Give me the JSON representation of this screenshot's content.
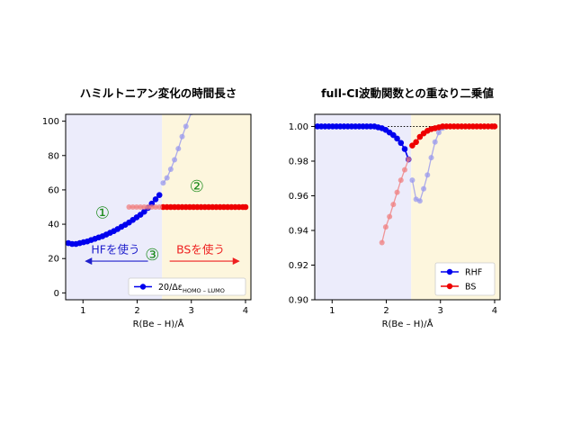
{
  "chart_data": [
    {
      "type": "line",
      "title": "ハミルトニアン変化の時間長さ",
      "xlabel": "R(Be – H)/Å",
      "ylabel": "",
      "xlim": [
        0.68,
        4.1
      ],
      "ylim": [
        -4,
        104
      ],
      "xticks": [
        1,
        2,
        3,
        4
      ],
      "yticks": [
        0,
        20,
        40,
        60,
        80,
        100
      ],
      "regions": [
        {
          "x0": 0.68,
          "x1": 2.46,
          "color": "#ececfb"
        },
        {
          "x0": 2.46,
          "x1": 4.1,
          "color": "#fdf6dd"
        }
      ],
      "series": [
        {
          "name": "20/Δε_HOMO−LUMO",
          "color": "#0000ee",
          "style": "solid",
          "x": [
            0.73,
            0.8,
            0.87,
            0.94,
            1.01,
            1.08,
            1.15,
            1.22,
            1.29,
            1.36,
            1.43,
            1.5,
            1.57,
            1.64,
            1.71,
            1.78,
            1.85,
            1.92,
            1.99,
            2.06,
            2.13,
            2.2,
            2.27,
            2.34,
            2.41
          ],
          "values": [
            29,
            28.5,
            28.5,
            29,
            29.5,
            30,
            30.8,
            31.5,
            32.3,
            33,
            34,
            35,
            36,
            37.2,
            38.5,
            39.7,
            41,
            42.5,
            44,
            45.5,
            47.3,
            49.5,
            52,
            54.5,
            57
          ]
        },
        {
          "name": "",
          "color": "#9999ee",
          "style": "faded",
          "x": [
            2.48,
            2.55,
            2.62,
            2.69,
            2.76,
            2.83,
            2.9,
            3.0
          ],
          "values": [
            64,
            67,
            72,
            77.5,
            84,
            91,
            97,
            105
          ]
        },
        {
          "name": "",
          "color": "#ee0000",
          "style": "solid",
          "x": [
            2.48,
            2.55,
            2.62,
            2.69,
            2.76,
            2.83,
            2.9,
            2.97,
            3.04,
            3.11,
            3.18,
            3.25,
            3.32,
            3.39,
            3.46,
            3.53,
            3.6,
            3.67,
            3.74,
            3.81,
            3.88,
            3.95,
            4.0
          ],
          "values": [
            50,
            50,
            50,
            50,
            50,
            50,
            50,
            50,
            50,
            50,
            50,
            50,
            50,
            50,
            50,
            50,
            50,
            50,
            50,
            50,
            50,
            50,
            50
          ]
        },
        {
          "name": "",
          "color": "#f08080",
          "style": "faded",
          "x": [
            1.85,
            1.92,
            1.99,
            2.06,
            2.13,
            2.2,
            2.27,
            2.34,
            2.41
          ],
          "values": [
            50,
            50,
            50,
            50,
            50,
            50,
            50,
            50,
            50
          ]
        }
      ],
      "annotations": [
        {
          "id": "a1",
          "text": "①",
          "x": 1.36,
          "y": 43.5,
          "color": "#1e8c1e"
        },
        {
          "id": "a2",
          "text": "②",
          "x": 3.1,
          "y": 59,
          "color": "#1e8c1e"
        },
        {
          "id": "a3",
          "text": "③",
          "x": 2.28,
          "y": 19,
          "color": "#1e8c1e"
        },
        {
          "id": "hf",
          "text": "HFを使う",
          "x": 1.6,
          "y": 23,
          "color": "#2020cc"
        },
        {
          "id": "bs",
          "text": "BSを使う",
          "x": 3.17,
          "y": 23,
          "color": "#ee2020"
        }
      ],
      "arrows": [
        {
          "from": [
            2.2,
            18.5
          ],
          "to": [
            1.05,
            18.5
          ],
          "color": "#2020cc"
        },
        {
          "from": [
            2.6,
            18.5
          ],
          "to": [
            3.88,
            18.5
          ],
          "color": "#ee2020"
        }
      ],
      "legend": {
        "placement": "bottom-right",
        "label": "20/Δε",
        "sub": "HOMO – LUMO"
      },
      "grid": false
    },
    {
      "type": "line",
      "title": "full-CI波動関数との重なり二乗値",
      "xlabel": "R(Be – H)/Å",
      "ylabel": "",
      "xlim": [
        0.68,
        4.1
      ],
      "ylim": [
        0.9,
        1.007
      ],
      "xticks": [
        1,
        2,
        3,
        4
      ],
      "yticks": [
        0.9,
        0.92,
        0.94,
        0.96,
        0.98,
        1.0
      ],
      "ytick_labels": [
        "0.90",
        "0.92",
        "0.94",
        "0.96",
        "0.98",
        "1.00"
      ],
      "regions": [
        {
          "x0": 0.68,
          "x1": 2.46,
          "color": "#ececfb"
        },
        {
          "x0": 2.46,
          "x1": 4.1,
          "color": "#fdf6dd"
        }
      ],
      "dotted_line": {
        "y": 1.0,
        "x0": 2.03,
        "x1": 3.0
      },
      "series": [
        {
          "name": "RHF",
          "color": "#0000ee",
          "style": "solid",
          "x": [
            0.73,
            0.8,
            0.87,
            0.94,
            1.01,
            1.08,
            1.15,
            1.22,
            1.29,
            1.36,
            1.43,
            1.5,
            1.57,
            1.64,
            1.71,
            1.78,
            1.85,
            1.92,
            1.99,
            2.06,
            2.13,
            2.2,
            2.27,
            2.34,
            2.41
          ],
          "values": [
            1.0,
            1.0,
            1.0,
            1.0,
            1.0,
            1.0,
            1.0,
            1.0,
            1.0,
            1.0,
            1.0,
            1.0,
            1.0,
            1.0,
            1.0,
            1.0,
            0.9995,
            0.999,
            0.998,
            0.9965,
            0.995,
            0.993,
            0.9905,
            0.987,
            0.981
          ]
        },
        {
          "name": "",
          "color": "#9999ee",
          "style": "faded",
          "x": [
            2.48,
            2.55,
            2.62,
            2.69,
            2.76,
            2.83,
            2.9,
            2.97,
            3.04,
            3.11
          ],
          "values": [
            0.969,
            0.958,
            0.957,
            0.964,
            0.972,
            0.982,
            0.991,
            0.9965,
            0.999,
            1.0
          ]
        },
        {
          "name": "BS",
          "color": "#ee0000",
          "style": "solid",
          "x": [
            2.48,
            2.55,
            2.62,
            2.69,
            2.76,
            2.83,
            2.9,
            2.97,
            3.04,
            3.11,
            3.18,
            3.25,
            3.32,
            3.39,
            3.46,
            3.53,
            3.6,
            3.67,
            3.74,
            3.81,
            3.88,
            3.95,
            4.0
          ],
          "values": [
            0.989,
            0.991,
            0.994,
            0.996,
            0.9975,
            0.9985,
            0.999,
            0.9995,
            1.0,
            1.0,
            1.0,
            1.0,
            1.0,
            1.0,
            1.0,
            1.0,
            1.0,
            1.0,
            1.0,
            1.0,
            1.0,
            1.0,
            1.0
          ]
        },
        {
          "name": "",
          "color": "#f08080",
          "style": "faded",
          "x": [
            1.92,
            1.99,
            2.06,
            2.13,
            2.2,
            2.27,
            2.34,
            2.41
          ],
          "values": [
            0.933,
            0.942,
            0.948,
            0.955,
            0.962,
            0.969,
            0.975,
            0.981
          ]
        }
      ],
      "legend": {
        "placement": "bottom-right"
      },
      "grid": false
    }
  ]
}
